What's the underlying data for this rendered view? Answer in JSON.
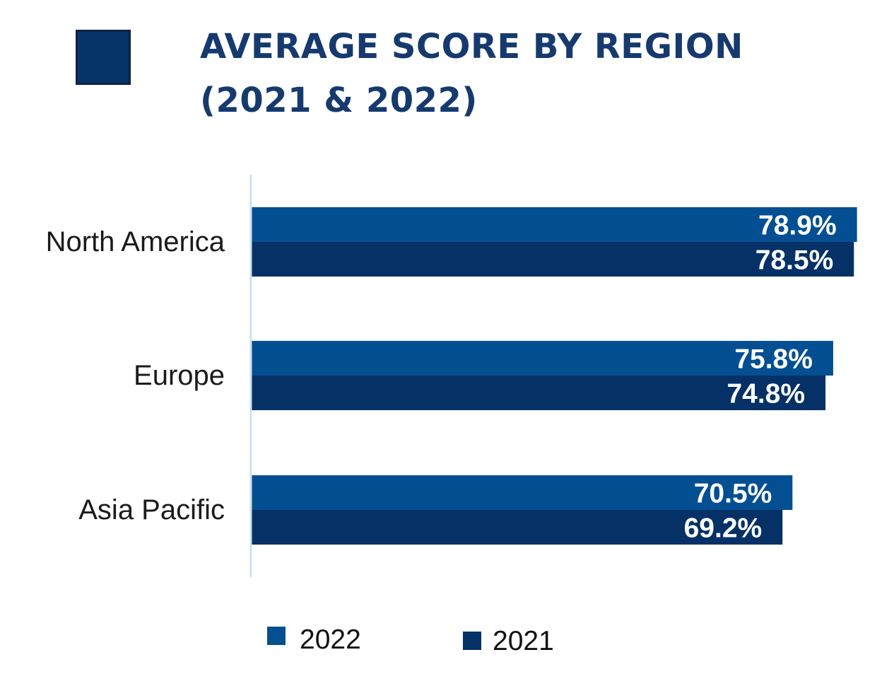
{
  "colors": {
    "title": "#163a6e",
    "logo": "#06346a",
    "series_2022": "#034f92",
    "series_2021": "#053167",
    "axis": "#cde2ee"
  },
  "chart_data": {
    "type": "bar",
    "orientation": "horizontal",
    "title_lines": [
      "AVERAGE SCORE BY REGION",
      "(2021 & 2022)"
    ],
    "categories": [
      "North America",
      "Europe",
      "Asia Pacific"
    ],
    "series": [
      {
        "name": "2022",
        "values": [
          78.9,
          75.8,
          70.5
        ],
        "labels": [
          "78.9%",
          "75.8%",
          "70.5%"
        ]
      },
      {
        "name": "2021",
        "values": [
          78.5,
          74.8,
          69.2
        ],
        "labels": [
          "78.5%",
          "74.8%",
          "69.2%"
        ]
      }
    ],
    "xlim": [
      0,
      100
    ],
    "xlabel": "",
    "ylabel": "",
    "grid": false,
    "legend_position": "bottom",
    "data_labels": "inside-end"
  }
}
